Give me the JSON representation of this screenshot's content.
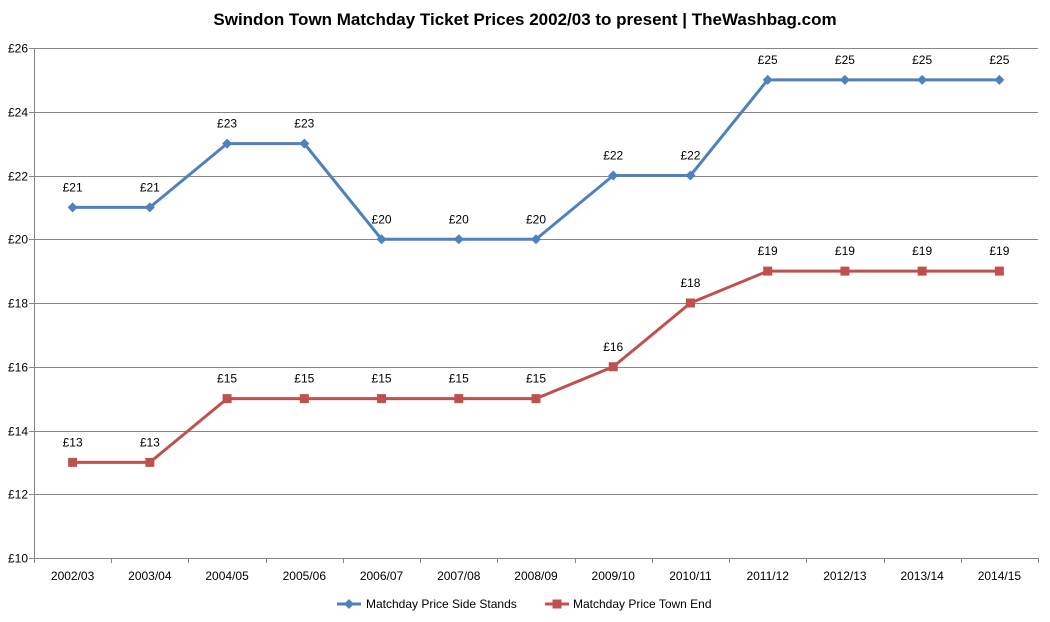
{
  "chart_data": {
    "type": "line",
    "title": "Swindon Town Matchday Ticket Prices 2002/03 to present | TheWashbag.com",
    "xlabel": "",
    "ylabel": "",
    "categories": [
      "2002/03",
      "2003/04",
      "2004/05",
      "2005/06",
      "2006/07",
      "2007/08",
      "2008/09",
      "2009/10",
      "2010/11",
      "2011/12",
      "2012/13",
      "2013/14",
      "2014/15"
    ],
    "ylim": [
      10,
      26
    ],
    "yticks": [
      10,
      12,
      14,
      16,
      18,
      20,
      22,
      24,
      26
    ],
    "ytick_labels": [
      "£10",
      "£12",
      "£14",
      "£16",
      "£18",
      "£20",
      "£22",
      "£24",
      "£26"
    ],
    "grid": true,
    "legend_position": "bottom",
    "series": [
      {
        "name": "Matchday Price Side Stands",
        "color": "#4F81BD",
        "marker": "diamond",
        "values": [
          21,
          21,
          23,
          23,
          20,
          20,
          20,
          22,
          22,
          25,
          25,
          25,
          25
        ],
        "labels": [
          "£21",
          "£21",
          "£23",
          "£23",
          "£20",
          "£20",
          "£20",
          "£22",
          "£22",
          "£25",
          "£25",
          "£25",
          "£25"
        ]
      },
      {
        "name": "Matchday Price Town End",
        "color": "#C0504D",
        "marker": "square",
        "values": [
          13,
          13,
          15,
          15,
          15,
          15,
          15,
          16,
          18,
          19,
          19,
          19,
          19
        ],
        "labels": [
          "£13",
          "£13",
          "£15",
          "£15",
          "£15",
          "£15",
          "£15",
          "£16",
          "£18",
          "£19",
          "£19",
          "£19",
          "£19"
        ]
      }
    ]
  }
}
